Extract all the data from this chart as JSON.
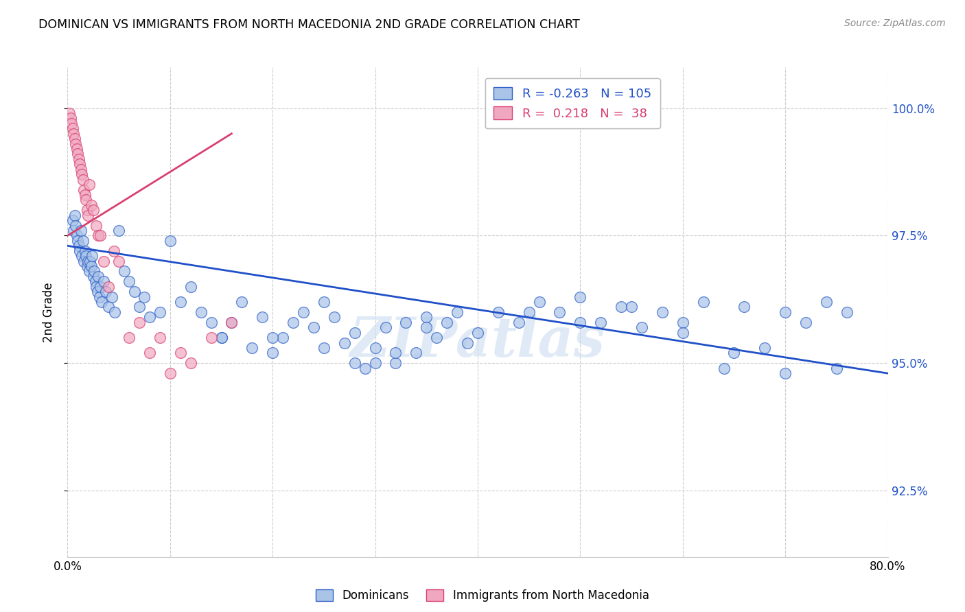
{
  "title": "DOMINICAN VS IMMIGRANTS FROM NORTH MACEDONIA 2ND GRADE CORRELATION CHART",
  "source": "Source: ZipAtlas.com",
  "ylabel": "2nd Grade",
  "xmin": 0.0,
  "xmax": 80.0,
  "ymin": 91.2,
  "ymax": 100.8,
  "blue_R": -0.263,
  "blue_N": 105,
  "pink_R": 0.218,
  "pink_N": 38,
  "blue_color": "#aac4e8",
  "pink_color": "#f0a8c0",
  "blue_edge_color": "#3060c8",
  "pink_edge_color": "#d84070",
  "blue_line_color": "#2050c8",
  "pink_line_color": "#d84070",
  "legend_label_blue": "Dominicans",
  "legend_label_pink": "Immigrants from North Macedonia",
  "watermark": "ZIPatlas",
  "blue_scatter_x": [
    0.5,
    0.6,
    0.7,
    0.8,
    0.9,
    1.0,
    1.1,
    1.2,
    1.3,
    1.4,
    1.5,
    1.6,
    1.7,
    1.8,
    1.9,
    2.0,
    2.1,
    2.2,
    2.3,
    2.4,
    2.5,
    2.6,
    2.7,
    2.8,
    2.9,
    3.0,
    3.1,
    3.2,
    3.3,
    3.5,
    3.7,
    4.0,
    4.3,
    4.6,
    5.0,
    5.5,
    6.0,
    6.5,
    7.0,
    7.5,
    8.0,
    9.0,
    10.0,
    11.0,
    12.0,
    13.0,
    14.0,
    15.0,
    16.0,
    17.0,
    18.0,
    19.0,
    20.0,
    21.0,
    22.0,
    23.0,
    24.0,
    25.0,
    26.0,
    27.0,
    28.0,
    29.0,
    30.0,
    31.0,
    32.0,
    33.0,
    34.0,
    35.0,
    36.0,
    37.0,
    38.0,
    39.0,
    40.0,
    42.0,
    44.0,
    46.0,
    48.0,
    50.0,
    52.0,
    54.0,
    56.0,
    58.0,
    60.0,
    62.0,
    64.0,
    66.0,
    68.0,
    70.0,
    72.0,
    74.0,
    76.0,
    32.0,
    20.0,
    28.0,
    35.0,
    25.0,
    30.0,
    15.0,
    45.0,
    50.0,
    55.0,
    60.0,
    65.0,
    70.0,
    75.0
  ],
  "blue_scatter_y": [
    97.8,
    97.6,
    97.9,
    97.7,
    97.5,
    97.4,
    97.3,
    97.2,
    97.6,
    97.1,
    97.4,
    97.0,
    97.2,
    97.1,
    96.9,
    97.0,
    96.8,
    97.0,
    96.9,
    97.1,
    96.7,
    96.8,
    96.6,
    96.5,
    96.4,
    96.7,
    96.3,
    96.5,
    96.2,
    96.6,
    96.4,
    96.1,
    96.3,
    96.0,
    97.6,
    96.8,
    96.6,
    96.4,
    96.1,
    96.3,
    95.9,
    96.0,
    97.4,
    96.2,
    96.5,
    96.0,
    95.8,
    95.5,
    95.8,
    96.2,
    95.3,
    95.9,
    95.2,
    95.5,
    95.8,
    96.0,
    95.7,
    96.2,
    95.9,
    95.4,
    95.6,
    94.9,
    95.3,
    95.7,
    95.0,
    95.8,
    95.2,
    95.9,
    95.5,
    95.8,
    96.0,
    95.4,
    95.6,
    96.0,
    95.8,
    96.2,
    96.0,
    96.3,
    95.8,
    96.1,
    95.7,
    96.0,
    95.8,
    96.2,
    94.9,
    96.1,
    95.3,
    96.0,
    95.8,
    96.2,
    96.0,
    95.2,
    95.5,
    95.0,
    95.7,
    95.3,
    95.0,
    95.5,
    96.0,
    95.8,
    96.1,
    95.6,
    95.2,
    94.8,
    94.9
  ],
  "pink_scatter_x": [
    0.2,
    0.3,
    0.4,
    0.5,
    0.6,
    0.7,
    0.8,
    0.9,
    1.0,
    1.1,
    1.2,
    1.3,
    1.4,
    1.5,
    1.6,
    1.7,
    1.8,
    1.9,
    2.0,
    2.1,
    2.3,
    2.5,
    2.8,
    3.0,
    3.5,
    4.0,
    4.5,
    5.0,
    6.0,
    7.0,
    8.0,
    9.0,
    10.0,
    11.0,
    12.0,
    14.0,
    16.0,
    3.2
  ],
  "pink_scatter_y": [
    99.9,
    99.8,
    99.7,
    99.6,
    99.5,
    99.4,
    99.3,
    99.2,
    99.1,
    99.0,
    98.9,
    98.8,
    98.7,
    98.6,
    98.4,
    98.3,
    98.2,
    98.0,
    97.9,
    98.5,
    98.1,
    98.0,
    97.7,
    97.5,
    97.0,
    96.5,
    97.2,
    97.0,
    95.5,
    95.8,
    95.2,
    95.5,
    94.8,
    95.2,
    95.0,
    95.5,
    95.8,
    97.5
  ],
  "blue_trend_x": [
    0.0,
    80.0
  ],
  "blue_trend_y": [
    97.3,
    94.8
  ],
  "pink_trend_x": [
    0.0,
    16.0
  ],
  "pink_trend_y": [
    97.5,
    99.5
  ]
}
